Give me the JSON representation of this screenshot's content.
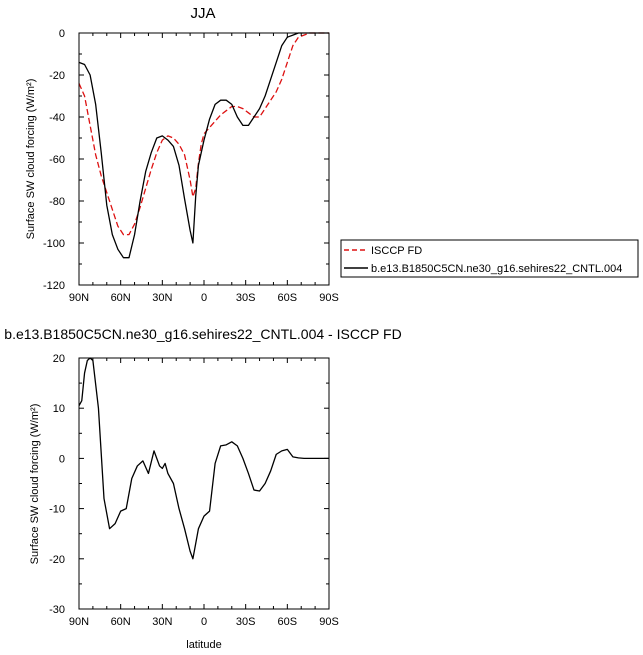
{
  "chart_data": [
    {
      "type": "line",
      "title": "JJA",
      "xlabel": "",
      "ylabel": "Surface SW cloud forcing (W/m²)",
      "xlim": [
        90,
        -90
      ],
      "ylim": [
        -120,
        0
      ],
      "xticks": [
        90,
        60,
        30,
        0,
        -30,
        -60,
        -90
      ],
      "xtick_labels": [
        "90N",
        "60N",
        "30N",
        "0",
        "30S",
        "60S",
        "90S"
      ],
      "yticks": [
        0,
        -20,
        -40,
        -60,
        -80,
        -100,
        -120
      ],
      "ytick_labels": [
        "0",
        "-20",
        "-40",
        "-60",
        "-80",
        "-100",
        "-120"
      ],
      "legend_position": "right",
      "series": [
        {
          "name": "ISCCP FD",
          "color": "#dd1111",
          "dash": true,
          "x": [
            90,
            86,
            82,
            78,
            74,
            70,
            66,
            62,
            58,
            54,
            50,
            46,
            42,
            38,
            34,
            30,
            26,
            22,
            18,
            14,
            10,
            8,
            6,
            4,
            2,
            0,
            -4,
            -8,
            -12,
            -16,
            -20,
            -24,
            -28,
            -32,
            -36,
            -40,
            -44,
            -48,
            -52,
            -56,
            -60,
            -64,
            -68,
            -72,
            -76,
            -80,
            -84,
            -88,
            -90
          ],
          "y": [
            -24,
            -30,
            -44,
            -58,
            -68,
            -76,
            -84,
            -92,
            -96,
            -96,
            -91,
            -83,
            -74,
            -65,
            -57,
            -51,
            -49,
            -50,
            -53,
            -58,
            -70,
            -78,
            -74,
            -62,
            -53,
            -48,
            -45,
            -42,
            -39,
            -37,
            -35,
            -35,
            -36,
            -38,
            -40,
            -40,
            -36,
            -32,
            -28,
            -22,
            -14,
            -6,
            -2,
            -1,
            0,
            0,
            0,
            0,
            0
          ]
        },
        {
          "name": "b.e13.B1850C5CN.ne30_g16.sehires22_CNTL.004",
          "color": "#000000",
          "dash": false,
          "x": [
            90,
            86,
            82,
            78,
            74,
            70,
            66,
            62,
            58,
            54,
            50,
            46,
            42,
            38,
            34,
            30,
            26,
            22,
            18,
            14,
            10,
            8,
            6,
            4,
            2,
            0,
            -4,
            -8,
            -12,
            -16,
            -20,
            -24,
            -28,
            -32,
            -36,
            -40,
            -44,
            -48,
            -52,
            -56,
            -60,
            -64,
            -68,
            -72,
            -76,
            -80,
            -84,
            -88,
            -90
          ],
          "y": [
            -14,
            -15,
            -20,
            -34,
            -57,
            -82,
            -96,
            -103,
            -107,
            -107,
            -96,
            -80,
            -66,
            -57,
            -50,
            -49,
            -51,
            -54,
            -63,
            -79,
            -94,
            -100,
            -78,
            -63,
            -57,
            -51,
            -41,
            -34,
            -32,
            -32,
            -34,
            -40,
            -44,
            -44,
            -40,
            -36,
            -30,
            -22,
            -14,
            -6,
            -2,
            -1,
            0,
            0,
            0,
            0,
            0,
            0,
            0
          ]
        }
      ]
    },
    {
      "type": "line",
      "title": "b.e13.B1850C5CN.ne30_g16.sehires22_CNTL.004 - ISCCP FD",
      "xlabel": "latitude",
      "ylabel": "Surface SW cloud forcing (W/m²)",
      "xlim": [
        90,
        -90
      ],
      "ylim": [
        -30,
        20
      ],
      "xticks": [
        90,
        60,
        30,
        0,
        -30,
        -60,
        -90
      ],
      "xtick_labels": [
        "90N",
        "60N",
        "30N",
        "0",
        "30S",
        "60S",
        "90S"
      ],
      "yticks": [
        20,
        10,
        0,
        -10,
        -20,
        -30
      ],
      "ytick_labels": [
        "20",
        "10",
        "0",
        "-10",
        "-20",
        "-30"
      ],
      "series": [
        {
          "color": "#000000",
          "dash": false,
          "x": [
            90,
            88,
            86,
            84,
            82,
            80,
            76,
            72,
            68,
            64,
            60,
            56,
            52,
            48,
            44,
            40,
            36,
            32,
            30,
            28,
            26,
            22,
            18,
            14,
            10,
            8,
            6,
            4,
            0,
            -4,
            -8,
            -12,
            -16,
            -20,
            -24,
            -28,
            -32,
            -36,
            -40,
            -44,
            -48,
            -52,
            -56,
            -60,
            -64,
            -68,
            -72,
            -76,
            -80,
            -84,
            -88,
            -90
          ],
          "y": [
            10.5,
            11.5,
            17,
            19.5,
            20,
            19.5,
            10,
            -8,
            -14,
            -13,
            -10.5,
            -10,
            -4,
            -1.5,
            -0.5,
            -3,
            1.5,
            -1.5,
            -2,
            -1,
            -3,
            -5,
            -10,
            -14,
            -18.5,
            -20,
            -17,
            -14,
            -11.5,
            -10.5,
            -1,
            2.5,
            2.7,
            3.3,
            2.5,
            0,
            -3,
            -6.3,
            -6.5,
            -5,
            -2.5,
            0.8,
            1.5,
            1.8,
            0.3,
            0.1,
            0,
            0,
            0,
            0,
            0,
            0
          ]
        }
      ]
    }
  ]
}
